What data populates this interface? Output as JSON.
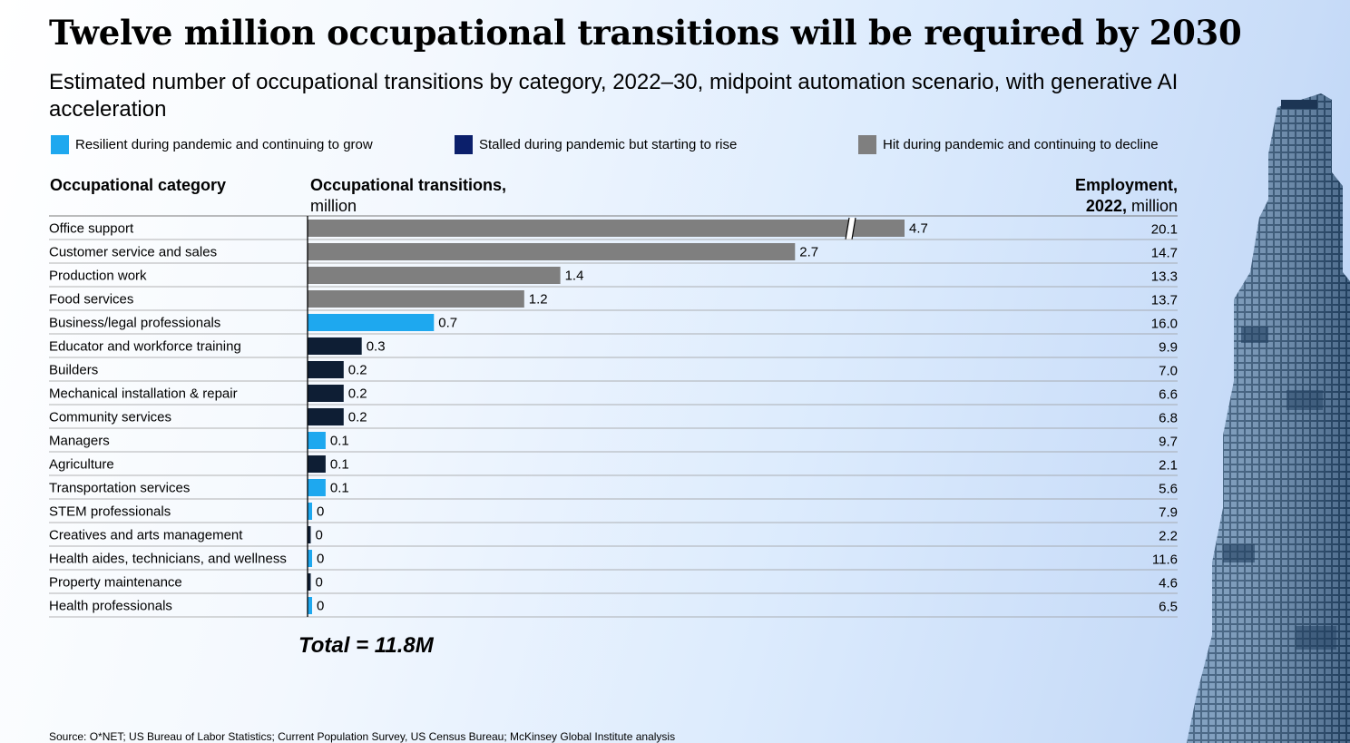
{
  "title": "Twelve million occupational transitions will be required by 2030",
  "subtitle": "Estimated number of occupational transitions by category, 2022–30, midpoint automation scenario, with generative AI acceleration",
  "legend": [
    {
      "label": "Resilient during pandemic and continuing to grow",
      "color": "#1ea8ef"
    },
    {
      "label": "Stalled during pandemic but starting to rise",
      "color": "#0b1f6b"
    },
    {
      "label": "Hit during pandemic and continuing to decline",
      "color": "#7f7f7f"
    }
  ],
  "headers": {
    "category": "Occupational category",
    "transitions_bold": "Occupational transitions,",
    "transitions_unit": "million",
    "employment_bold_1": "Employment,",
    "employment_bold_2": "2022,",
    "employment_unit": "million"
  },
  "colors": {
    "resilient": "#1ea8ef",
    "stalled": "#0e1e34",
    "hit": "#7f7f7f"
  },
  "chart_data": {
    "type": "bar",
    "orientation": "horizontal",
    "title": "Twelve million occupational transitions will be required by 2030",
    "xlabel": "Occupational transitions, million",
    "axis_break": {
      "category": "Office support",
      "note": "bar truncated with axis break"
    },
    "categories": [
      "Office support",
      "Customer service and sales",
      "Production work",
      "Food services",
      "Business/legal professionals",
      "Educator and workforce training",
      "Builders",
      "Mechanical installation & repair",
      "Community services",
      "Managers",
      "Agriculture",
      "Transportation services",
      "STEM professionals",
      "Creatives and arts management",
      "Health aides, technicians, and wellness",
      "Property maintenance",
      "Health professionals"
    ],
    "values": [
      4.7,
      2.7,
      1.4,
      1.2,
      0.7,
      0.3,
      0.2,
      0.2,
      0.2,
      0.1,
      0.1,
      0.1,
      0,
      0,
      0,
      0,
      0
    ],
    "value_labels": [
      "4.7",
      "2.7",
      "1.4",
      "1.2",
      "0.7",
      "0.3",
      "0.2",
      "0.2",
      "0.2",
      "0.1",
      "0.1",
      "0.1",
      "0",
      "0",
      "0",
      "0",
      "0"
    ],
    "groups": [
      "hit",
      "hit",
      "hit",
      "hit",
      "resilient",
      "stalled",
      "stalled",
      "stalled",
      "stalled",
      "resilient",
      "stalled",
      "resilient",
      "resilient",
      "stalled",
      "resilient",
      "stalled",
      "resilient"
    ],
    "employment_2022_million": [
      "20.1",
      "14.7",
      "13.3",
      "13.7",
      "16.0",
      "9.9",
      "7.0",
      "6.6",
      "6.8",
      "9.7",
      "2.1",
      "5.6",
      "7.9",
      "2.2",
      "11.6",
      "4.6",
      "6.5"
    ]
  },
  "total": "Total = 11.8M",
  "source": "Source: O*NET; US Bureau of Labor Statistics; Current Population Survey, US Census Bureau; McKinsey Global Institute analysis"
}
